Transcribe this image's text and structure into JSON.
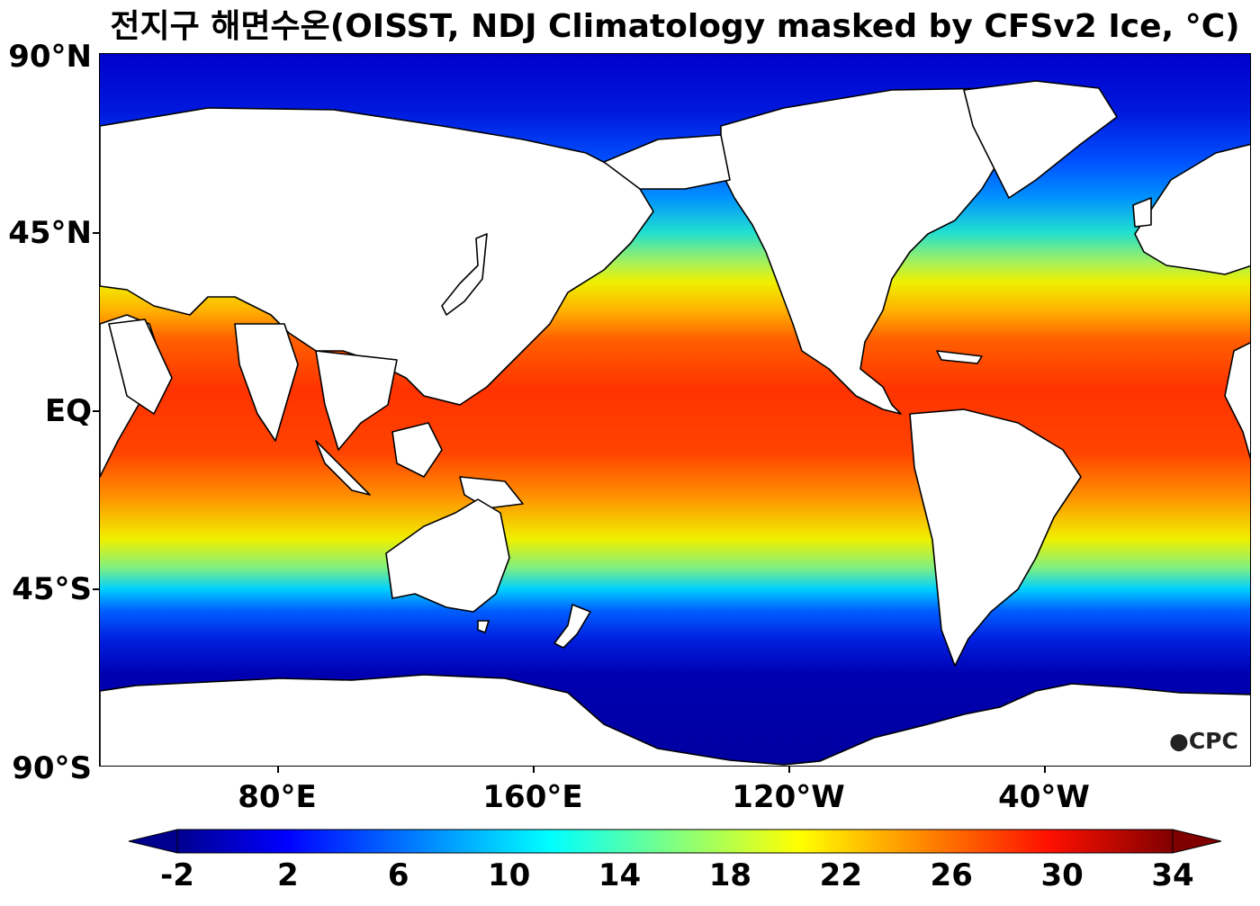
{
  "title": "전지구 해면수온(OISST, NDJ Climatology masked by CFSv2 Ice, °C)",
  "map": {
    "projection": "equirectangular",
    "center_longitude": 200,
    "land_color": "#ffffff",
    "coastline_color": "#000000",
    "lat_ticks": [
      {
        "lat": 90,
        "label": "90°N"
      },
      {
        "lat": 45,
        "label": "45°N"
      },
      {
        "lat": 0,
        "label": "EQ"
      },
      {
        "lat": -45,
        "label": "45°S"
      },
      {
        "lat": -90,
        "label": "90°S"
      }
    ],
    "lon_ticks": [
      {
        "lon": 80,
        "label": "80°E"
      },
      {
        "lon": 160,
        "label": "160°E"
      },
      {
        "lon": 240,
        "label": "120°W"
      },
      {
        "lon": 320,
        "label": "40°W"
      }
    ]
  },
  "colorbar": {
    "colormap": "jet",
    "extend": "both",
    "min": -2,
    "max": 34,
    "ticks": [
      -2,
      2,
      6,
      10,
      14,
      18,
      22,
      26,
      30,
      34
    ],
    "tick_labels": [
      "-2",
      "2",
      "6",
      "10",
      "14",
      "18",
      "22",
      "26",
      "30",
      "34"
    ],
    "unit": "°C"
  },
  "logo_text": "CPC"
}
